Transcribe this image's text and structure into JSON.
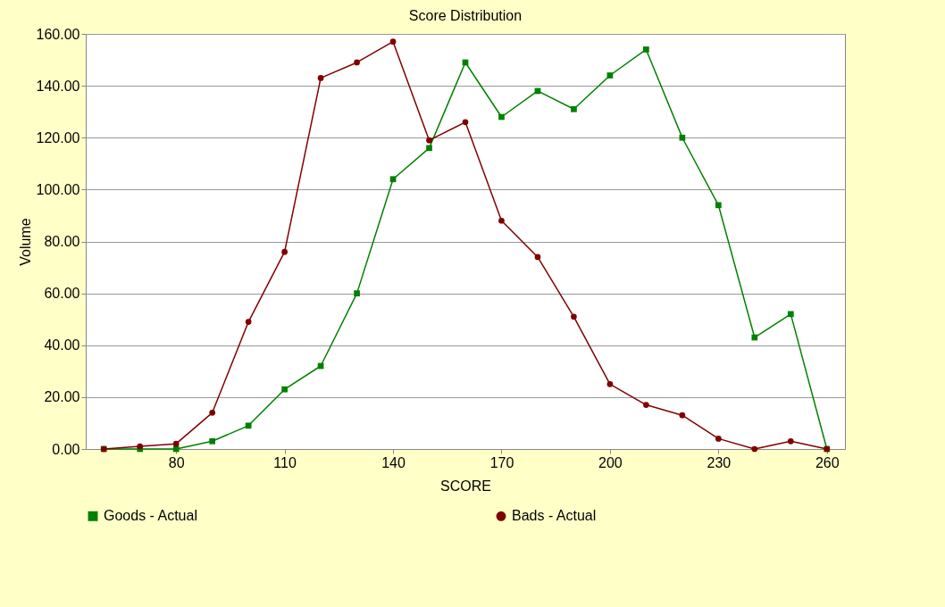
{
  "chart_data": {
    "type": "line",
    "title": "Score Distribution",
    "xlabel": "SCORE",
    "ylabel": "Volume",
    "x": [
      60,
      70,
      80,
      90,
      100,
      110,
      120,
      130,
      140,
      150,
      160,
      170,
      180,
      190,
      200,
      210,
      220,
      230,
      240,
      250,
      260
    ],
    "series": [
      {
        "name": "Goods - Actual",
        "color": "#008000",
        "marker": "square",
        "values": [
          0,
          0,
          0,
          3,
          9,
          23,
          32,
          60,
          104,
          116,
          149,
          128,
          138,
          131,
          144,
          154,
          120,
          94,
          43,
          52,
          0
        ]
      },
      {
        "name": "Bads - Actual",
        "color": "#800000",
        "marker": "circle",
        "values": [
          0,
          1,
          2,
          14,
          49,
          76,
          143,
          149,
          157,
          119,
          126,
          88,
          74,
          51,
          25,
          17,
          13,
          4,
          0,
          3,
          0
        ]
      }
    ],
    "xlim": [
      55,
      265
    ],
    "xticks": [
      80,
      110,
      140,
      170,
      200,
      230,
      260
    ],
    "ylim": [
      0,
      160
    ],
    "yticks": [
      {
        "value": 0,
        "label": "0.00"
      },
      {
        "value": 20,
        "label": "20.00"
      },
      {
        "value": 40,
        "label": "40.00"
      },
      {
        "value": 60,
        "label": "60.00"
      },
      {
        "value": 80,
        "label": "80.00"
      },
      {
        "value": 100,
        "label": "100.00"
      },
      {
        "value": 120,
        "label": "120.00"
      },
      {
        "value": 140,
        "label": "140.00"
      },
      {
        "value": 160,
        "label": "160.00"
      }
    ],
    "grid": "y",
    "legend": "bottom",
    "line_style": "solid"
  }
}
